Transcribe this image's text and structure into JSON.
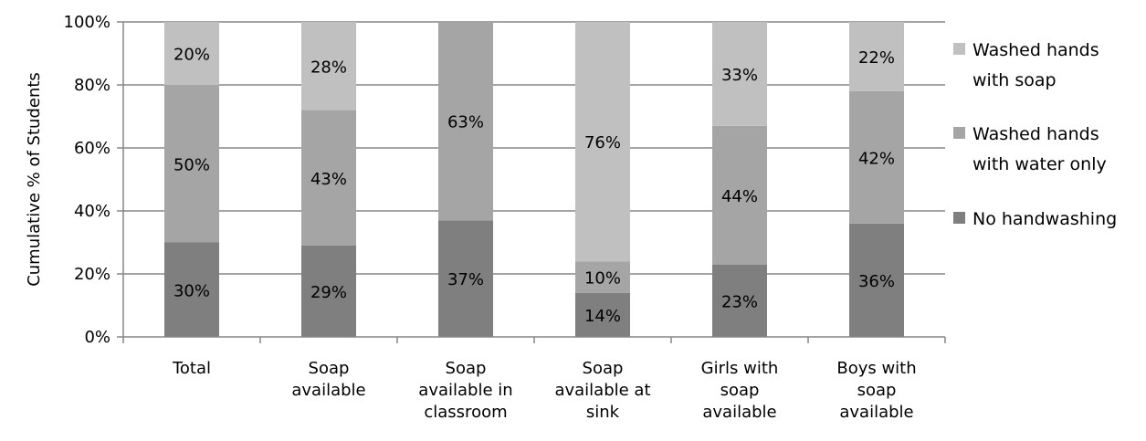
{
  "chart_data": {
    "type": "bar",
    "stacked": true,
    "title": "",
    "xlabel": "",
    "ylabel": "Cumulative % of Students",
    "ylim": [
      0,
      100
    ],
    "y_ticks": [
      0,
      20,
      40,
      60,
      80,
      100
    ],
    "y_tick_labels": [
      "0%",
      "20%",
      "40%",
      "60%",
      "80%",
      "100%"
    ],
    "grid": true,
    "legend_position": "right",
    "categories": [
      [
        "Total"
      ],
      [
        "Soap",
        "available"
      ],
      [
        "Soap",
        "available in",
        "classroom"
      ],
      [
        "Soap",
        "available at",
        "sink"
      ],
      [
        "Girls with",
        "soap",
        "available"
      ],
      [
        "Boys with",
        "soap",
        "available"
      ]
    ],
    "series": [
      {
        "name": "No handwashing",
        "legend_lines": [
          "No handwashing"
        ],
        "color": "#7f7f7f",
        "values": [
          30,
          29,
          37,
          14,
          23,
          36
        ],
        "labels": [
          "30%",
          "29%",
          "37%",
          "14%",
          "23%",
          "36%"
        ]
      },
      {
        "name": "Washed hands with water only",
        "legend_lines": [
          "Washed hands",
          "with water only"
        ],
        "color": "#a5a5a5",
        "values": [
          50,
          43,
          63,
          10,
          44,
          42
        ],
        "labels": [
          "50%",
          "43%",
          "63%",
          "10%",
          "44%",
          "42%"
        ]
      },
      {
        "name": "Washed hands with soap",
        "legend_lines": [
          "Washed hands",
          "with soap"
        ],
        "color": "#c0c0c0",
        "values": [
          20,
          28,
          0,
          76,
          33,
          22
        ],
        "labels": [
          "20%",
          "28%",
          "",
          "76%",
          "33%",
          "22%"
        ]
      }
    ]
  }
}
